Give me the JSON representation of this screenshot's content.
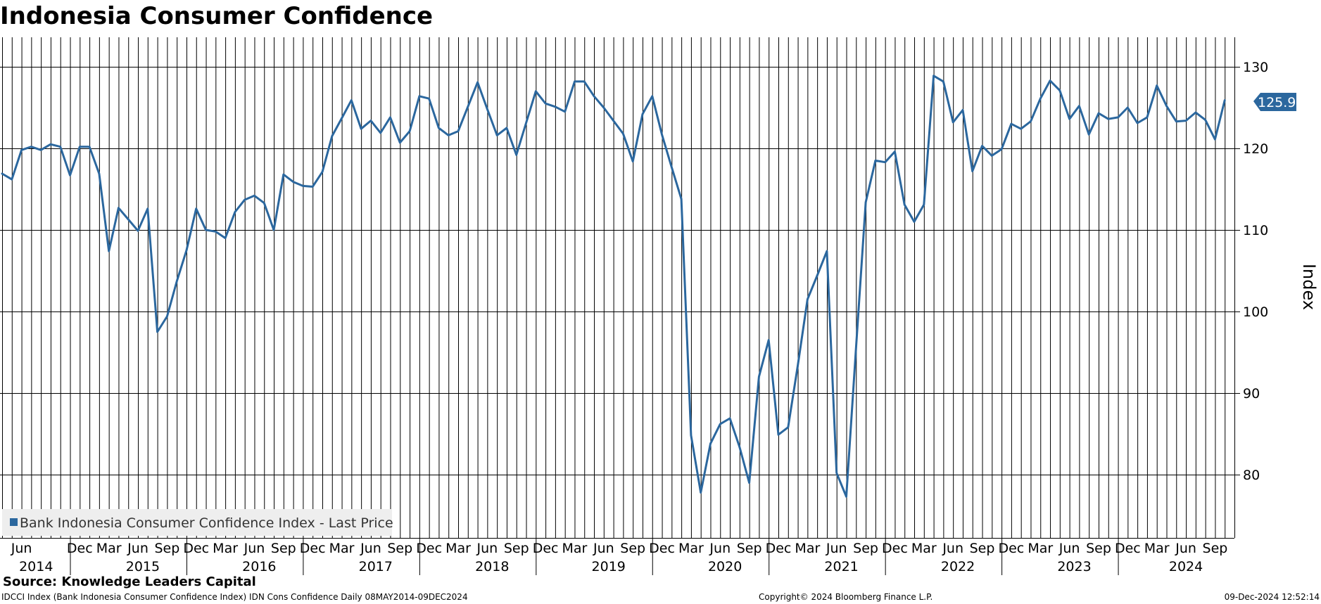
{
  "title": "Indonesia Consumer Confidence",
  "source": "Source: Knowledge Leaders Capital",
  "footer": {
    "description": "IDCCI Index (Bank Indonesia Consumer Confidence Index) IDN Cons Confidence  Daily 08MAY2014-09DEC2024",
    "copyright": "Copyright© 2024 Bloomberg Finance L.P.",
    "timestamp": "09-Dec-2024 12:52:14"
  },
  "colors": {
    "series": "#2b679e",
    "grid": "#000000",
    "legend_bg": "#eeeeee"
  },
  "chart_data": {
    "type": "line",
    "title": "Indonesia Consumer Confidence",
    "ylabel": "Index",
    "xlabel": "",
    "ylim": [
      72,
      135
    ],
    "yticks": [
      80,
      90,
      100,
      110,
      120,
      130
    ],
    "grid": true,
    "legend": {
      "label": "Bank Indonesia Consumer Confidence Index - Last Price",
      "position": "bottom-left"
    },
    "last_value_label": "125.9",
    "month_ticks": [
      {
        "label": "Jun",
        "month": 2
      },
      {
        "label": "Dec",
        "month": 8
      },
      {
        "label": "Mar",
        "month": 11
      },
      {
        "label": "Jun",
        "month": 14
      },
      {
        "label": "Sep",
        "month": 17
      },
      {
        "label": "Dec",
        "month": 20
      },
      {
        "label": "Mar",
        "month": 23
      },
      {
        "label": "Jun",
        "month": 26
      },
      {
        "label": "Sep",
        "month": 29
      },
      {
        "label": "Dec",
        "month": 32
      },
      {
        "label": "Mar",
        "month": 35
      },
      {
        "label": "Jun",
        "month": 38
      },
      {
        "label": "Sep",
        "month": 41
      },
      {
        "label": "Dec",
        "month": 44
      },
      {
        "label": "Mar",
        "month": 47
      },
      {
        "label": "Jun",
        "month": 50
      },
      {
        "label": "Sep",
        "month": 53
      },
      {
        "label": "Dec",
        "month": 56
      },
      {
        "label": "Mar",
        "month": 59
      },
      {
        "label": "Jun",
        "month": 62
      },
      {
        "label": "Sep",
        "month": 65
      },
      {
        "label": "Dec",
        "month": 68
      },
      {
        "label": "Mar",
        "month": 71
      },
      {
        "label": "Jun",
        "month": 74
      },
      {
        "label": "Sep",
        "month": 77
      },
      {
        "label": "Dec",
        "month": 80
      },
      {
        "label": "Mar",
        "month": 83
      },
      {
        "label": "Jun",
        "month": 86
      },
      {
        "label": "Sep",
        "month": 89
      },
      {
        "label": "Dec",
        "month": 92
      },
      {
        "label": "Mar",
        "month": 95
      },
      {
        "label": "Jun",
        "month": 98
      },
      {
        "label": "Sep",
        "month": 101
      },
      {
        "label": "Dec",
        "month": 104
      },
      {
        "label": "Mar",
        "month": 107
      },
      {
        "label": "Jun",
        "month": 110
      },
      {
        "label": "Sep",
        "month": 113
      },
      {
        "label": "Dec",
        "month": 116
      },
      {
        "label": "Mar",
        "month": 119
      },
      {
        "label": "Jun",
        "month": 122
      },
      {
        "label": "Sep",
        "month": 125
      }
    ],
    "years": [
      {
        "label": "2014",
        "center": 3.5
      },
      {
        "label": "2015",
        "center": 14.5
      },
      {
        "label": "2016",
        "center": 26.5
      },
      {
        "label": "2017",
        "center": 38.5
      },
      {
        "label": "2018",
        "center": 50.5
      },
      {
        "label": "2019",
        "center": 62.5
      },
      {
        "label": "2020",
        "center": 74.5
      },
      {
        "label": "2021",
        "center": 86.5
      },
      {
        "label": "2022",
        "center": 98.5
      },
      {
        "label": "2023",
        "center": 110.5
      },
      {
        "label": "2024",
        "center": 122
      }
    ],
    "year_dividers": [
      7,
      19,
      31,
      43,
      55,
      67,
      79,
      91,
      103,
      115
    ],
    "x_range": [
      0,
      127
    ],
    "series": [
      {
        "name": "Bank Indonesia Consumer Confidence Index - Last Price",
        "values": [
          116.9,
          116.2,
          119.8,
          120.2,
          119.8,
          120.5,
          120.2,
          116.7,
          120.2,
          120.2,
          116.9,
          107.4,
          112.7,
          111.3,
          109.9,
          112.6,
          97.5,
          99.4,
          103.7,
          107.5,
          112.6,
          110.0,
          109.8,
          109.0,
          112.2,
          113.7,
          114.2,
          113.3,
          110.0,
          116.8,
          115.9,
          115.4,
          115.3,
          117.1,
          121.5,
          123.7,
          125.9,
          122.4,
          123.4,
          121.9,
          123.8,
          120.7,
          122.1,
          126.4,
          126.1,
          122.5,
          121.6,
          122.1,
          125.1,
          128.1,
          124.8,
          121.6,
          122.5,
          119.2,
          123.1,
          127.0,
          125.5,
          125.1,
          124.5,
          128.2,
          128.2,
          126.4,
          125.0,
          123.4,
          121.8,
          118.4,
          124.2,
          126.4,
          121.7,
          117.7,
          113.8,
          84.8,
          77.8,
          83.8,
          86.2,
          86.9,
          83.4,
          79.0,
          92.0,
          96.5,
          84.9,
          85.8,
          93.4,
          101.5,
          104.4,
          107.4,
          80.2,
          77.3,
          95.5,
          113.4,
          118.5,
          118.3,
          119.6,
          113.1,
          111.0,
          113.1,
          128.9,
          128.2,
          123.2,
          124.7,
          117.2,
          120.3,
          119.1,
          119.9,
          123.0,
          122.4,
          123.3,
          126.1,
          128.3,
          127.1,
          123.6,
          125.2,
          121.7,
          124.3,
          123.6,
          123.8,
          125.0,
          123.1,
          123.8,
          127.7,
          125.2,
          123.3,
          123.4,
          124.4,
          123.5,
          121.1,
          125.9
        ]
      }
    ]
  }
}
